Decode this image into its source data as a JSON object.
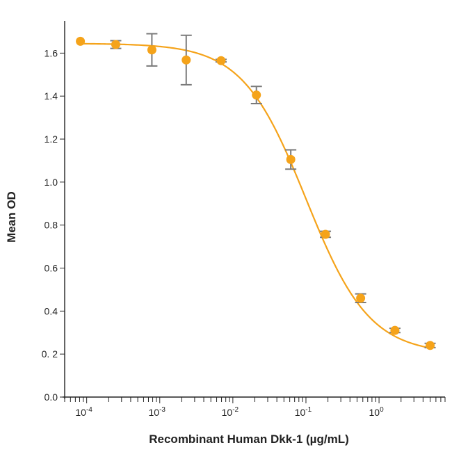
{
  "chart_data": {
    "type": "scatter",
    "title": "",
    "xlabel": "Recombinant Human Dkk-1 (µg/mL)",
    "ylabel": "Mean OD",
    "x_scale": "log",
    "xlim": [
      5e-05,
      8
    ],
    "ylim": [
      0,
      1.75
    ],
    "x_ticks": [
      {
        "value": 0.0001,
        "base": "10",
        "exp": "-4"
      },
      {
        "value": 0.001,
        "base": "10",
        "exp": "-3"
      },
      {
        "value": 0.01,
        "base": "10",
        "exp": "-2"
      },
      {
        "value": 0.1,
        "base": "10",
        "exp": "-1"
      },
      {
        "value": 1,
        "base": "10",
        "exp": "0"
      }
    ],
    "y_ticks": [
      {
        "value": 0.0,
        "label": "0.0"
      },
      {
        "value": 0.2,
        "label": "0. 2"
      },
      {
        "value": 0.4,
        "label": "0.4"
      },
      {
        "value": 0.6,
        "label": "0.6"
      },
      {
        "value": 0.8,
        "label": "0.8"
      },
      {
        "value": 1.0,
        "label": "1.0"
      },
      {
        "value": 1.2,
        "label": "1.2"
      },
      {
        "value": 1.4,
        "label": "1.4"
      },
      {
        "value": 1.6,
        "label": "1.6"
      }
    ],
    "grid": false,
    "colors": {
      "series": "#f5a31a",
      "error_bars": "#7a7a7a",
      "axes": "#222222"
    },
    "series": [
      {
        "x": [
          8.2e-05,
          0.00025,
          0.00078,
          0.0023,
          0.0069,
          0.021,
          0.062,
          0.185,
          0.56,
          1.65,
          5.0
        ],
        "y": [
          1.655,
          1.64,
          1.615,
          1.568,
          1.565,
          1.405,
          1.105,
          0.757,
          0.46,
          0.31,
          0.24
        ],
        "err": [
          0,
          0.018,
          0.075,
          0.115,
          0.006,
          0.04,
          0.045,
          0.014,
          0.02,
          0.01,
          0.01
        ]
      }
    ],
    "fit": {
      "model": "4PL",
      "top": 1.645,
      "bottom": 0.2,
      "ec50": 0.1,
      "hill": 1.0
    }
  }
}
